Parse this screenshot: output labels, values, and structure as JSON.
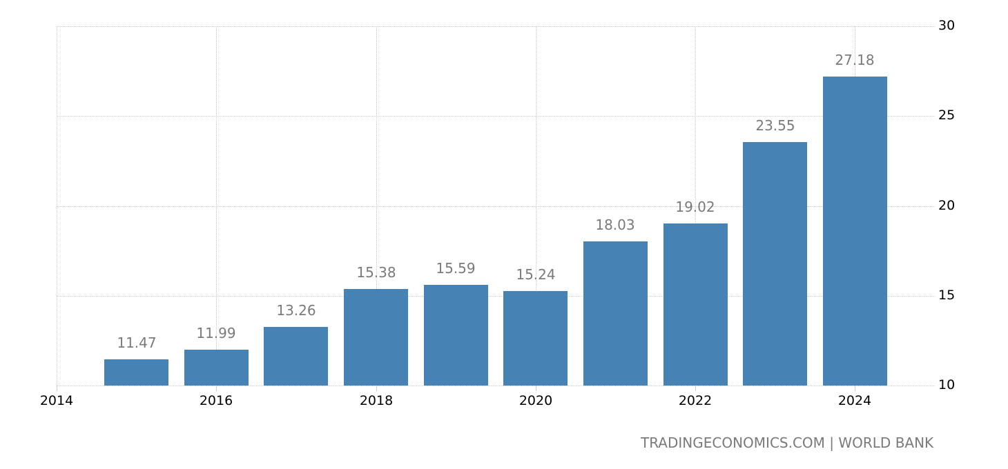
{
  "chart_data": {
    "type": "bar",
    "title": "",
    "xlabel": "",
    "ylabel": "",
    "categories": [
      "2015",
      "2016",
      "2017",
      "2018",
      "2019",
      "2020",
      "2021",
      "2022",
      "2023",
      "2024"
    ],
    "values": [
      11.47,
      11.99,
      13.26,
      15.38,
      15.59,
      15.24,
      18.03,
      19.02,
      23.55,
      27.18
    ],
    "value_labels": [
      "11.47",
      "11.99",
      "13.26",
      "15.38",
      "15.59",
      "15.24",
      "18.03",
      "19.02",
      "23.55",
      "27.18"
    ],
    "x_ticks": [
      "2014",
      "2016",
      "2018",
      "2020",
      "2022",
      "2024"
    ],
    "y_ticks": [
      "10",
      "15",
      "20",
      "25",
      "30"
    ],
    "ylim": [
      10,
      30
    ],
    "xlim": [
      2014,
      2025
    ],
    "grid": true,
    "legend": null,
    "y_axis_position": "right",
    "bar_color": "#4682b4"
  },
  "footer": {
    "source": "TRADINGECONOMICS.COM | WORLD BANK"
  }
}
